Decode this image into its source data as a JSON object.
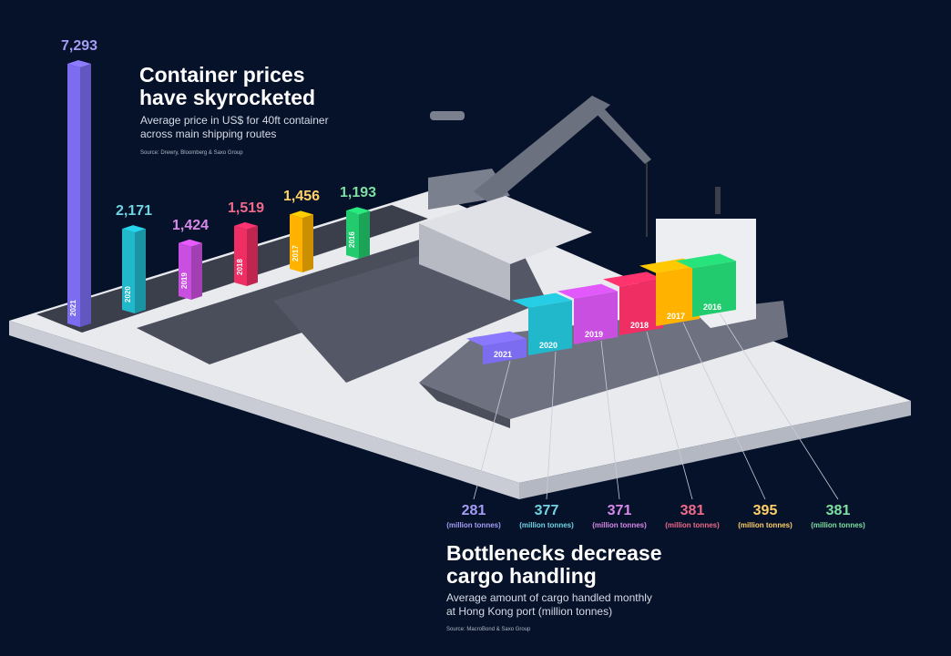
{
  "top_chart": {
    "title_line1": "Container prices",
    "title_line2": "have skyrocketed",
    "subtitle_line1": "Average price in US$ for 40ft container",
    "subtitle_line2": "across main shipping routes",
    "source": "Source: Drewry, Bloomberg & Saxo Group"
  },
  "bottom_chart": {
    "title_line1": "Bottlenecks decrease",
    "title_line2": "cargo handling",
    "subtitle_line1": "Average amount of cargo handled monthly",
    "subtitle_line2": "at Hong Kong port (million tonnes)",
    "source": "Source: MacroBond & Saxo Group",
    "unit_label": "(million tonnes)"
  },
  "chart_data": [
    {
      "type": "bar",
      "title": "Container prices have skyrocketed",
      "subtitle": "Average price in US$ for 40ft container across main shipping routes",
      "categories": [
        "2021",
        "2020",
        "2019",
        "2018",
        "2017",
        "2016"
      ],
      "values": [
        7293,
        2171,
        1424,
        1519,
        1456,
        1193
      ],
      "labels": [
        "7,293",
        "2,171",
        "1,424",
        "1,519",
        "1,456",
        "1,193"
      ],
      "colors": [
        "#7b6cf0",
        "#21b8cc",
        "#c94fe0",
        "#ef2e63",
        "#ffb300",
        "#22cc6e"
      ],
      "label_colors": [
        "#a59cf5",
        "#6fd5e3",
        "#d98ae9",
        "#f06a89",
        "#ffd166",
        "#7fe0a3"
      ],
      "ylabel": "US$"
    },
    {
      "type": "bar",
      "title": "Bottlenecks decrease cargo handling",
      "subtitle": "Average amount of cargo handled monthly at Hong Kong port (million tonnes)",
      "categories": [
        "2021",
        "2020",
        "2019",
        "2018",
        "2017",
        "2016"
      ],
      "values": [
        281,
        377,
        371,
        381,
        395,
        381
      ],
      "colors": [
        "#7b6cf0",
        "#21b8cc",
        "#c94fe0",
        "#ef2e63",
        "#ffb300",
        "#22cc6e"
      ],
      "label_colors": [
        "#a59cf5",
        "#6fd5e3",
        "#d98ae9",
        "#f06a89",
        "#ffd166",
        "#7fe0a3"
      ],
      "ylabel": "million tonnes"
    }
  ]
}
